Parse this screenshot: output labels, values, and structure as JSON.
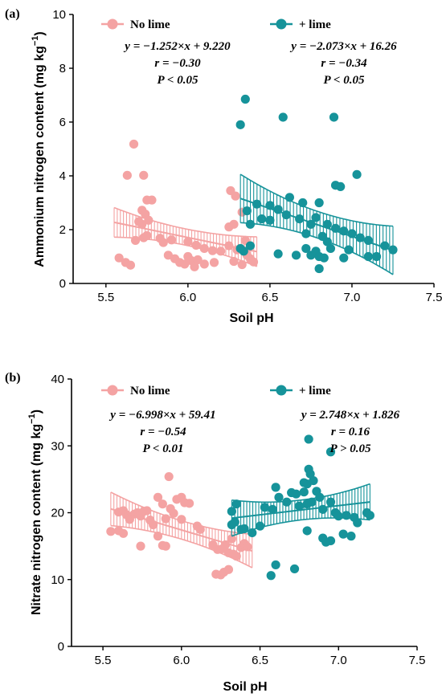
{
  "colors": {
    "no_lime": "#f4a3a3",
    "lime": "#16939a"
  },
  "chart_data": [
    {
      "type": "scatter",
      "panel": "(a)",
      "xlabel": "Soil pH",
      "ylabel": "Ammonium nitrogen content (mg kg",
      "ylabel_sup": "−1",
      "ylabel_close": ")",
      "xlim": [
        5.3,
        7.5
      ],
      "ylim": [
        0,
        10
      ],
      "xticks": [
        "5.5",
        "6.0",
        "6.5",
        "7.0",
        "7.5"
      ],
      "yticks": [
        "0",
        "2",
        "4",
        "6",
        "8",
        "10"
      ],
      "series": [
        {
          "name": "No lime",
          "fit": {
            "slope": -1.252,
            "intercept": 9.22,
            "x_range": [
              5.55,
              6.42
            ],
            "ci_width": 0.55
          },
          "stats": [
            "y = −1.252×x + 9.220",
            "r = −0.30",
            "P < 0.05"
          ],
          "points": [
            [
              5.67,
              5.18
            ],
            [
              5.63,
              4.02
            ],
            [
              5.73,
              4.02
            ],
            [
              5.75,
              3.1
            ],
            [
              5.78,
              3.1
            ],
            [
              5.72,
              2.72
            ],
            [
              5.74,
              2.58
            ],
            [
              5.76,
              2.35
            ],
            [
              5.7,
              2.3
            ],
            [
              5.72,
              2.2
            ],
            [
              5.68,
              1.6
            ],
            [
              5.73,
              1.7
            ],
            [
              5.75,
              1.78
            ],
            [
              5.83,
              1.68
            ],
            [
              5.85,
              1.52
            ],
            [
              5.9,
              1.62
            ],
            [
              6.0,
              1.55
            ],
            [
              6.05,
              1.42
            ],
            [
              6.1,
              1.3
            ],
            [
              6.15,
              1.22
            ],
            [
              6.2,
              1.2
            ],
            [
              6.25,
              1.4
            ],
            [
              6.3,
              1.25
            ],
            [
              6.35,
              1.2
            ],
            [
              6.26,
              3.45
            ],
            [
              6.29,
              3.25
            ],
            [
              6.33,
              2.65
            ],
            [
              6.28,
              2.2
            ],
            [
              6.25,
              2.1
            ],
            [
              5.58,
              0.95
            ],
            [
              5.62,
              0.78
            ],
            [
              5.65,
              0.68
            ],
            [
              5.88,
              1.05
            ],
            [
              5.92,
              0.92
            ],
            [
              5.95,
              0.78
            ],
            [
              5.98,
              0.72
            ],
            [
              6.0,
              1.0
            ],
            [
              6.02,
              0.85
            ],
            [
              6.04,
              0.62
            ],
            [
              6.06,
              0.88
            ],
            [
              6.1,
              0.72
            ],
            [
              6.16,
              0.78
            ],
            [
              6.28,
              0.82
            ],
            [
              6.33,
              0.7
            ],
            [
              6.35,
              1.6
            ],
            [
              6.38,
              0.92
            ],
            [
              6.4,
              0.8
            ],
            [
              6.36,
              1.05
            ]
          ]
        },
        {
          "name": "+ lime",
          "fit": {
            "slope": -2.073,
            "intercept": 16.26,
            "x_range": [
              6.32,
              7.25
            ],
            "ci_width": 0.9
          },
          "stats": [
            "y = −2.073×x + 16.26",
            "r = −0.34",
            "P < 0.05"
          ],
          "points": [
            [
              6.35,
              6.85
            ],
            [
              6.32,
              5.9
            ],
            [
              6.58,
              6.18
            ],
            [
              6.89,
              6.18
            ],
            [
              7.03,
              4.05
            ],
            [
              6.9,
              3.65
            ],
            [
              6.93,
              3.6
            ],
            [
              6.62,
              3.2
            ],
            [
              6.7,
              3.0
            ],
            [
              6.8,
              3.0
            ],
            [
              6.36,
              2.7
            ],
            [
              6.42,
              2.95
            ],
            [
              6.5,
              2.9
            ],
            [
              6.55,
              2.75
            ],
            [
              6.45,
              2.4
            ],
            [
              6.5,
              2.35
            ],
            [
              6.38,
              2.2
            ],
            [
              6.6,
              2.55
            ],
            [
              6.68,
              2.4
            ],
            [
              6.75,
              2.2
            ],
            [
              6.78,
              2.45
            ],
            [
              6.85,
              2.2
            ],
            [
              6.9,
              2.05
            ],
            [
              6.95,
              1.95
            ],
            [
              7.0,
              1.85
            ],
            [
              7.05,
              1.7
            ],
            [
              7.1,
              1.6
            ],
            [
              6.72,
              1.85
            ],
            [
              6.82,
              1.75
            ],
            [
              6.85,
              1.55
            ],
            [
              6.72,
              1.3
            ],
            [
              6.75,
              1.05
            ],
            [
              6.78,
              1.2
            ],
            [
              6.8,
              1.0
            ],
            [
              6.83,
              0.95
            ],
            [
              6.8,
              0.55
            ],
            [
              6.66,
              1.05
            ],
            [
              6.55,
              1.1
            ],
            [
              6.32,
              1.3
            ],
            [
              6.34,
              1.2
            ],
            [
              6.38,
              1.4
            ],
            [
              6.95,
              0.95
            ],
            [
              7.1,
              1.0
            ],
            [
              7.15,
              1.0
            ],
            [
              7.2,
              1.4
            ],
            [
              7.25,
              1.25
            ],
            [
              6.87,
              1.3
            ],
            [
              6.98,
              1.25
            ]
          ]
        }
      ]
    },
    {
      "type": "scatter",
      "panel": "(b)",
      "xlabel": "Soil pH",
      "ylabel": "Nitrate nitrogen content (mg kg",
      "ylabel_sup": "−1",
      "ylabel_close": ")",
      "xlim": [
        5.3,
        7.5
      ],
      "ylim": [
        0,
        40
      ],
      "xticks": [
        "5.5",
        "6.0",
        "6.5",
        "7.0",
        "7.5"
      ],
      "yticks": [
        "0",
        "10",
        "20",
        "30",
        "40"
      ],
      "series": [
        {
          "name": "No lime",
          "fit": {
            "slope": -6.998,
            "intercept": 59.41,
            "x_range": [
              5.55,
              6.45
            ],
            "ci_width": 2.5
          },
          "stats": [
            "y = −6.998×x + 59.41",
            "r = −0.54",
            "P < 0.01"
          ],
          "points": [
            [
              5.92,
              25.4
            ],
            [
              5.85,
              22.3
            ],
            [
              5.88,
              21.3
            ],
            [
              5.93,
              20.6
            ],
            [
              5.97,
              22.0
            ],
            [
              6.0,
              22.3
            ],
            [
              6.02,
              21.5
            ],
            [
              6.05,
              21.4
            ],
            [
              5.6,
              20.1
            ],
            [
              5.63,
              20.3
            ],
            [
              5.65,
              19.7
            ],
            [
              5.67,
              19.0
            ],
            [
              5.7,
              19.8
            ],
            [
              5.72,
              20.0
            ],
            [
              5.74,
              19.5
            ],
            [
              5.76,
              20.2
            ],
            [
              5.78,
              20.3
            ],
            [
              5.8,
              18.9
            ],
            [
              5.82,
              18.2
            ],
            [
              5.9,
              19.1
            ],
            [
              5.95,
              19.9
            ],
            [
              6.0,
              19.0
            ],
            [
              5.55,
              17.2
            ],
            [
              5.6,
              17.3
            ],
            [
              5.63,
              16.9
            ],
            [
              5.74,
              15.0
            ],
            [
              5.85,
              16.5
            ],
            [
              5.88,
              15.1
            ],
            [
              5.9,
              15.0
            ],
            [
              6.1,
              18.0
            ],
            [
              6.12,
              17.5
            ],
            [
              6.2,
              15.2
            ],
            [
              6.23,
              14.5
            ],
            [
              6.26,
              14.6
            ],
            [
              6.28,
              15.2
            ],
            [
              6.3,
              14.0
            ],
            [
              6.33,
              13.8
            ],
            [
              6.35,
              13.5
            ],
            [
              6.38,
              14.8
            ],
            [
              6.4,
              15.4
            ],
            [
              6.42,
              14.9
            ],
            [
              6.22,
              10.8
            ],
            [
              6.25,
              10.7
            ],
            [
              6.27,
              11.1
            ],
            [
              6.3,
              11.5
            ],
            [
              6.32,
              16.1
            ]
          ]
        },
        {
          "name": "+ lime",
          "fit": {
            "slope": 2.748,
            "intercept": 1.826,
            "x_range": [
              6.32,
              7.2
            ],
            "ci_width": 2.7
          },
          "stats": [
            "y = 2.748×x + 1.826",
            "r = 0.16",
            "P > 0.05"
          ],
          "points": [
            [
              6.81,
              31.0
            ],
            [
              6.95,
              29.1
            ],
            [
              6.81,
              26.5
            ],
            [
              6.82,
              25.8
            ],
            [
              6.78,
              24.5
            ],
            [
              6.6,
              23.8
            ],
            [
              6.7,
              23.0
            ],
            [
              6.73,
              22.8
            ],
            [
              6.78,
              23.1
            ],
            [
              6.8,
              24.3
            ],
            [
              6.84,
              24.8
            ],
            [
              6.86,
              23.2
            ],
            [
              6.88,
              22.3
            ],
            [
              6.83,
              21.6
            ],
            [
              6.8,
              21.3
            ],
            [
              6.9,
              20.5
            ],
            [
              6.95,
              21.6
            ],
            [
              6.98,
              20.0
            ],
            [
              7.0,
              19.5
            ],
            [
              7.05,
              19.6
            ],
            [
              7.1,
              19.3
            ],
            [
              7.12,
              18.5
            ],
            [
              7.2,
              19.6
            ],
            [
              7.18,
              20.0
            ],
            [
              6.35,
              21.3
            ],
            [
              6.32,
              20.2
            ],
            [
              6.34,
              18.6
            ],
            [
              6.38,
              17.5
            ],
            [
              6.4,
              17.6
            ],
            [
              6.5,
              18.0
            ],
            [
              6.45,
              17.0
            ],
            [
              6.53,
              20.8
            ],
            [
              6.58,
              20.5
            ],
            [
              6.62,
              22.3
            ],
            [
              6.67,
              21.6
            ],
            [
              6.75,
              21.0
            ],
            [
              6.8,
              17.3
            ],
            [
              6.9,
              16.2
            ],
            [
              6.92,
              15.6
            ],
            [
              6.95,
              15.8
            ],
            [
              7.03,
              16.8
            ],
            [
              7.08,
              16.5
            ],
            [
              6.57,
              10.6
            ],
            [
              6.6,
              12.2
            ],
            [
              6.72,
              11.6
            ],
            [
              6.32,
              18.2
            ]
          ]
        }
      ]
    }
  ]
}
